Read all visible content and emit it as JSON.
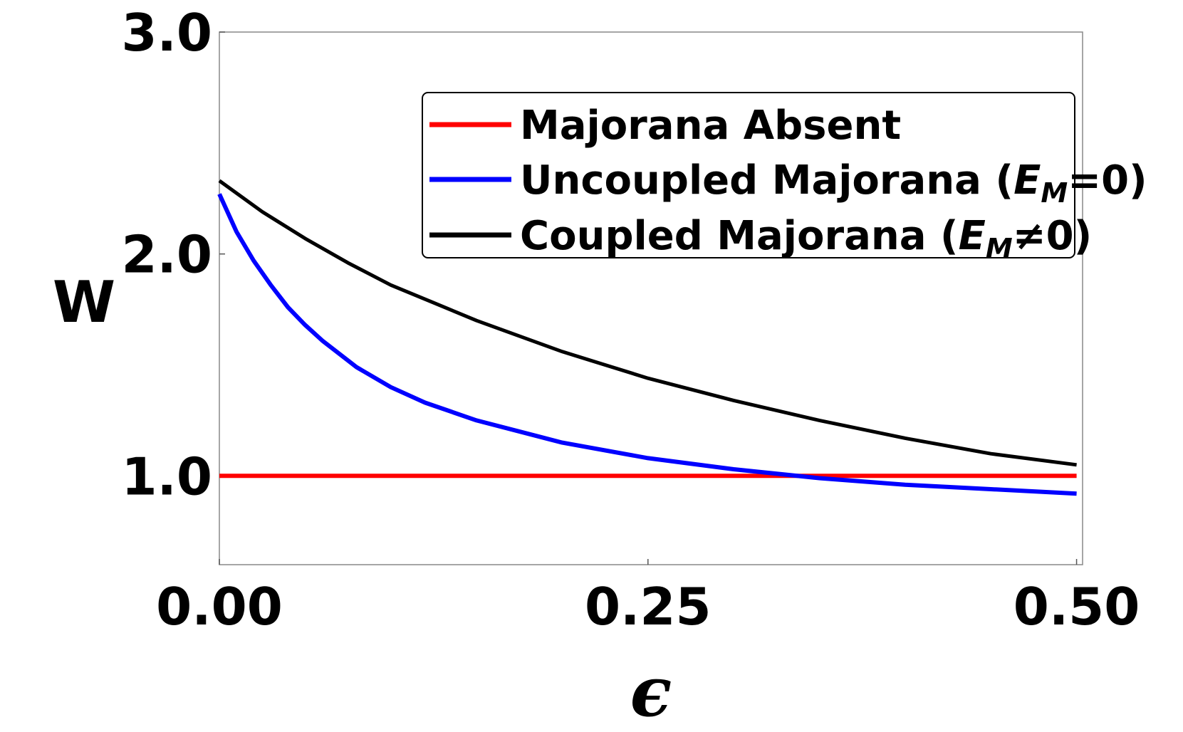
{
  "chart_data": {
    "type": "line",
    "xlabel": "ϵ",
    "ylabel": "W",
    "xlim": [
      0.0,
      0.5
    ],
    "ylim": [
      0.6,
      3.0
    ],
    "xticks": [
      0.0,
      0.25,
      0.5
    ],
    "xtick_labels": [
      "0.00",
      "0.25",
      "0.50"
    ],
    "yticks": [
      1.0,
      2.0,
      3.0
    ],
    "ytick_labels": [
      "1.0",
      "2.0",
      "3.0"
    ],
    "grid": false,
    "legend_placement": "top-right",
    "series": [
      {
        "name": "Majorana Absent",
        "color": "#ff0000",
        "x": [
          0.0,
          0.05,
          0.1,
          0.15,
          0.2,
          0.25,
          0.3,
          0.35,
          0.4,
          0.45,
          0.5
        ],
        "y": [
          1.0,
          1.0,
          1.0,
          1.0,
          1.0,
          1.0,
          1.0,
          1.0,
          1.0,
          1.0,
          1.0
        ]
      },
      {
        "name": "Uncoupled Majorana (E_M=0)",
        "color": "#0000ff",
        "x": [
          0.0,
          0.01,
          0.02,
          0.03,
          0.04,
          0.05,
          0.06,
          0.08,
          0.1,
          0.12,
          0.15,
          0.2,
          0.25,
          0.3,
          0.35,
          0.4,
          0.45,
          0.5
        ],
        "y": [
          2.27,
          2.1,
          1.97,
          1.86,
          1.76,
          1.68,
          1.61,
          1.49,
          1.4,
          1.33,
          1.25,
          1.15,
          1.08,
          1.03,
          0.99,
          0.96,
          0.94,
          0.92
        ]
      },
      {
        "name": "Coupled Majorana (E_M≠0)",
        "color": "#000000",
        "x": [
          0.0,
          0.025,
          0.05,
          0.075,
          0.1,
          0.125,
          0.15,
          0.2,
          0.25,
          0.3,
          0.35,
          0.4,
          0.45,
          0.5
        ],
        "y": [
          2.33,
          2.19,
          2.07,
          1.96,
          1.86,
          1.78,
          1.7,
          1.56,
          1.44,
          1.34,
          1.25,
          1.17,
          1.1,
          1.05
        ]
      }
    ]
  },
  "legend": {
    "entries": [
      {
        "prefix": "Majorana Absent",
        "sub": "",
        "suffix": ""
      },
      {
        "prefix": "Uncoupled Majorana (",
        "sub": "M",
        "suffix": "=0)"
      },
      {
        "prefix": "Coupled Majorana (",
        "sub": "M",
        "suffix": "≠0)"
      }
    ],
    "italic_symbol": "E"
  }
}
